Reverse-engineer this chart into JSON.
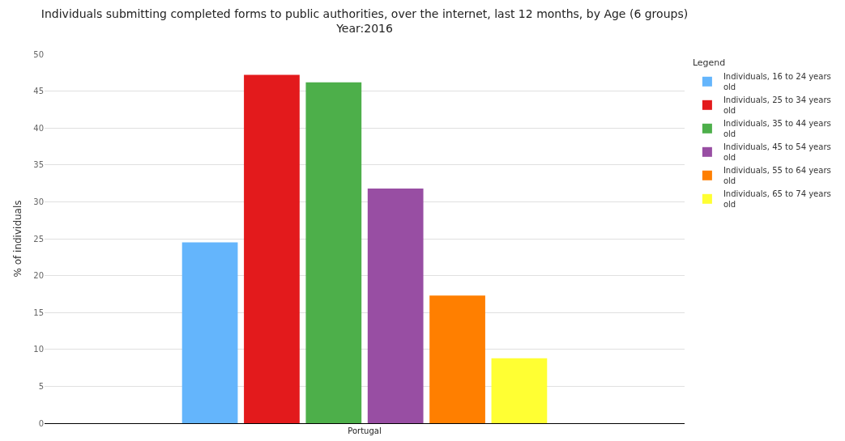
{
  "chart_data": {
    "type": "bar",
    "title": "Individuals submitting completed forms to public authorities, over the internet, last 12 months, by Age (6 groups)",
    "subtitle": "Year:2016",
    "ylabel": "% of individuals",
    "legend_title": "Legend",
    "categories": [
      "Portugal"
    ],
    "series": [
      {
        "name": "Individuals, 16 to 24 years old",
        "color": "#64b5fc",
        "values": [
          24.5
        ]
      },
      {
        "name": "Individuals, 25 to 34 years old",
        "color": "#e31a1c",
        "values": [
          47.2
        ]
      },
      {
        "name": "Individuals, 35 to 44 years old",
        "color": "#4daf4a",
        "values": [
          46.2
        ]
      },
      {
        "name": "Individuals, 45 to 54 years old",
        "color": "#984ea3",
        "values": [
          31.8
        ]
      },
      {
        "name": "Individuals, 55 to 64 years old",
        "color": "#ff7f00",
        "values": [
          17.3
        ]
      },
      {
        "name": "Individuals, 65 to 74 years old",
        "color": "#ffff33",
        "values": [
          8.8
        ]
      }
    ],
    "ylim": [
      0,
      50
    ],
    "yticks": [
      0,
      5,
      10,
      15,
      20,
      25,
      30,
      35,
      40,
      45,
      50
    ],
    "grid": "y",
    "legend": "top right"
  }
}
